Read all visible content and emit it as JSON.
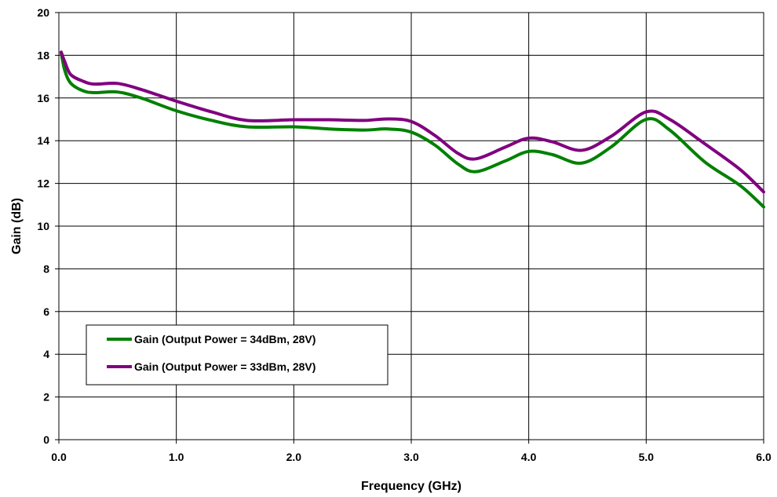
{
  "chart_data": {
    "type": "line",
    "title": "",
    "xlabel": "Frequency (GHz)",
    "ylabel": "Gain (dB)",
    "xlim": [
      0,
      6
    ],
    "ylim": [
      0,
      20
    ],
    "x_ticks": [
      "0.0",
      "1.0",
      "2.0",
      "3.0",
      "4.0",
      "5.0",
      "6.0"
    ],
    "y_ticks": [
      "0",
      "2",
      "4",
      "6",
      "8",
      "10",
      "12",
      "14",
      "16",
      "18",
      "20"
    ],
    "grid": true,
    "legend_position": "lower-left",
    "series": [
      {
        "name": "Gain (Output Power = 34dBm, 28V)",
        "color": "#008000",
        "x": [
          0.02,
          0.05,
          0.1,
          0.2,
          0.3,
          0.5,
          0.7,
          1.0,
          1.3,
          1.6,
          2.0,
          2.3,
          2.6,
          2.8,
          3.0,
          3.2,
          3.4,
          3.55,
          3.8,
          4.0,
          4.2,
          4.45,
          4.7,
          5.0,
          5.2,
          5.5,
          5.8,
          6.0
        ],
        "values": [
          18.1,
          17.3,
          16.7,
          16.35,
          16.25,
          16.28,
          16.0,
          15.4,
          14.95,
          14.65,
          14.65,
          14.55,
          14.5,
          14.55,
          14.4,
          13.8,
          12.9,
          12.55,
          13.05,
          13.5,
          13.35,
          12.95,
          13.7,
          15.0,
          14.5,
          13.0,
          11.9,
          10.9
        ]
      },
      {
        "name": "Gain (Output Power = 33dBm, 28V)",
        "color": "#800080",
        "x": [
          0.02,
          0.05,
          0.1,
          0.2,
          0.3,
          0.5,
          0.7,
          1.0,
          1.3,
          1.6,
          2.0,
          2.3,
          2.6,
          2.8,
          3.0,
          3.2,
          3.4,
          3.55,
          3.8,
          4.0,
          4.2,
          4.45,
          4.7,
          5.0,
          5.2,
          5.5,
          5.8,
          6.0
        ],
        "values": [
          18.15,
          17.7,
          17.1,
          16.8,
          16.65,
          16.68,
          16.4,
          15.85,
          15.35,
          14.95,
          14.98,
          14.98,
          14.95,
          15.02,
          14.9,
          14.25,
          13.4,
          13.15,
          13.7,
          14.12,
          13.95,
          13.55,
          14.2,
          15.35,
          15.0,
          13.85,
          12.65,
          11.6
        ]
      }
    ]
  }
}
